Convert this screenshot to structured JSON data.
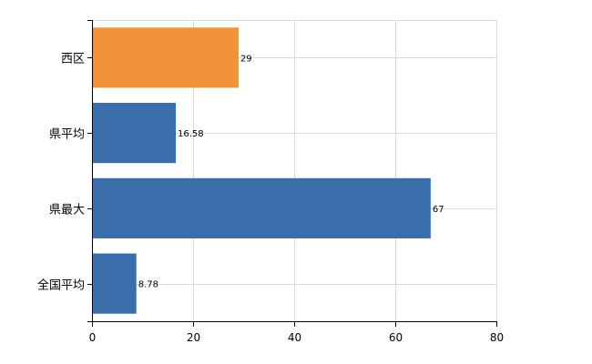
{
  "chart_data": {
    "type": "bar",
    "orientation": "horizontal",
    "title": "",
    "xlabel": "",
    "ylabel": "",
    "categories": [
      "西区",
      "県平均",
      "県最大",
      "全国平均"
    ],
    "values": [
      29,
      16.58,
      67,
      8.78
    ],
    "data_labels": [
      "29",
      "16.58",
      "67",
      "8.78"
    ],
    "bar_colors": [
      "#f0923a",
      "#3a6eaa",
      "#3a6eaa",
      "#3a6eaa"
    ],
    "xlim": [
      0,
      80
    ],
    "x_ticks": [
      0,
      20,
      40,
      60,
      80
    ],
    "x_tick_labels": [
      "0",
      "20",
      "40",
      "60",
      "80"
    ],
    "grid": true,
    "legend": "none"
  }
}
